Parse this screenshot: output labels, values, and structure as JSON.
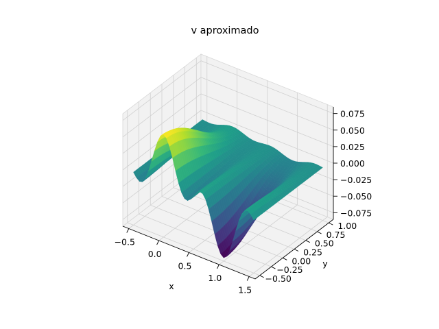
{
  "chart_data": {
    "type": "surface",
    "title": "v aproximado",
    "xlabel": "x",
    "ylabel": "y",
    "zlabel": "",
    "xlim": [
      -0.6,
      1.6
    ],
    "ylim": [
      -0.6,
      1.1
    ],
    "zlim": [
      -0.085,
      0.085
    ],
    "x_ticks": [
      -0.5,
      0.0,
      0.5,
      1.0,
      1.5
    ],
    "x_tick_labels": [
      "−0.5",
      "0.0",
      "0.5",
      "1.0",
      "1.5"
    ],
    "y_ticks": [
      -0.5,
      -0.25,
      0.0,
      0.25,
      0.5,
      0.75,
      1.0
    ],
    "y_tick_labels": [
      "−0.50",
      "−0.25",
      "0.00",
      "0.25",
      "0.50",
      "0.75",
      "1.00"
    ],
    "z_ticks": [
      -0.075,
      -0.05,
      -0.025,
      0.0,
      0.025,
      0.05,
      0.075
    ],
    "z_tick_labels": [
      "−0.075",
      "−0.050",
      "−0.025",
      "0.000",
      "0.025",
      "0.050",
      "0.075"
    ],
    "colormap": "viridis",
    "grid": true,
    "surface": {
      "x_range": [
        -0.5,
        1.5
      ],
      "y_range": [
        -0.5,
        1.0
      ],
      "resolution": 40,
      "z_range": [
        -0.08,
        0.07
      ]
    },
    "colors": {
      "pane": "#f2f2f2",
      "pane_edge": "#d8d8d8",
      "grid": "#d0d0d0",
      "axis_line": "#000000"
    }
  }
}
